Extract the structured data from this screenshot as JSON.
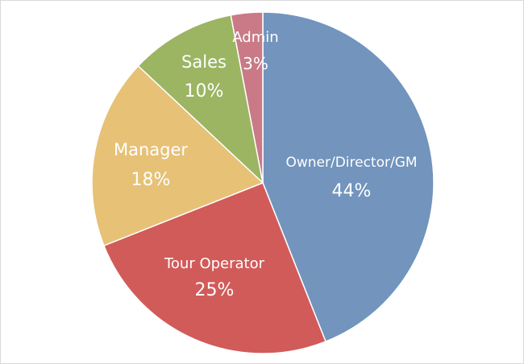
{
  "chart_data": {
    "type": "pie",
    "title": "",
    "slices": [
      {
        "label": "Owner/Director/GM",
        "value_label": "44%",
        "value": 44,
        "color": "#7294bd"
      },
      {
        "label": "Tour Operator",
        "value_label": "25%",
        "value": 25,
        "color": "#d15b59"
      },
      {
        "label": "Manager",
        "value_label": "18%",
        "value": 18,
        "color": "#e6c176"
      },
      {
        "label": "Sales",
        "value_label": "10%",
        "value": 10,
        "color": "#9bb563"
      },
      {
        "label": "Admin",
        "value_label": "3%",
        "value": 3,
        "color": "#c97a86"
      }
    ]
  }
}
